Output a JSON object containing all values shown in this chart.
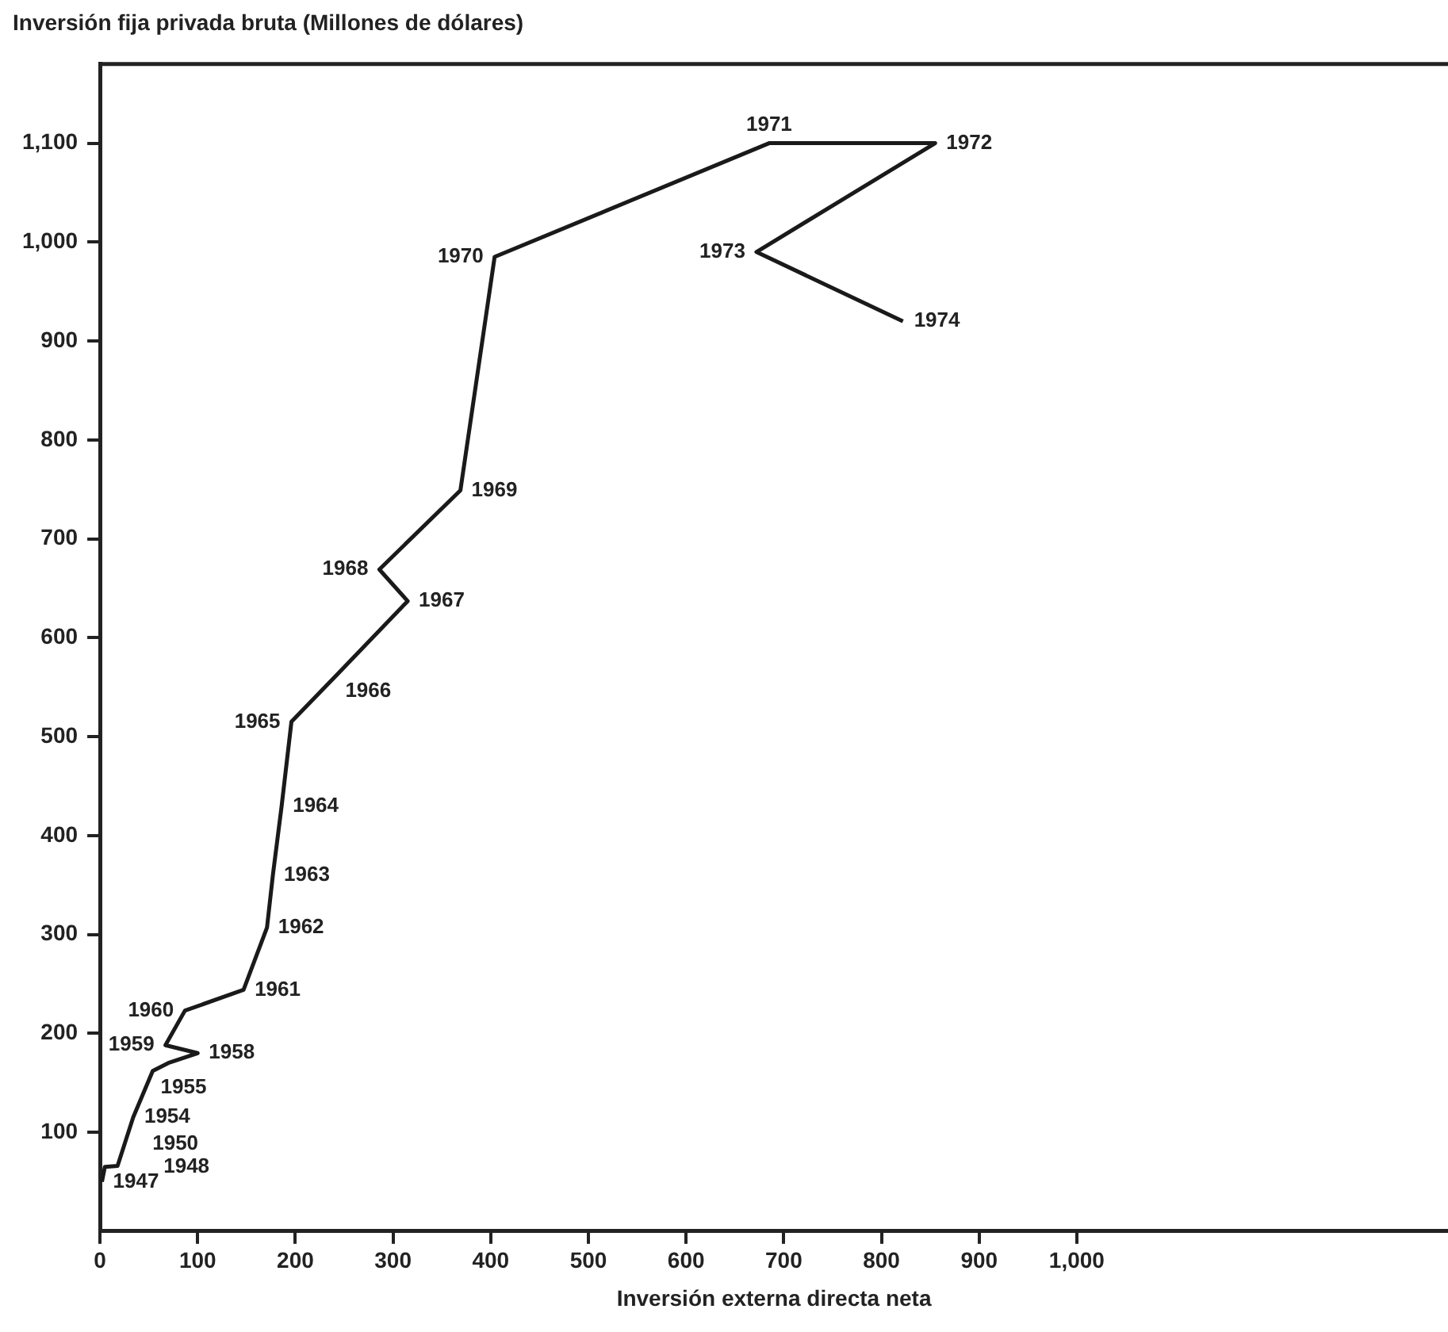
{
  "chart_data": {
    "type": "line",
    "xlabel": "Inversión externa directa neta",
    "ylabel": "Inversión fija privada bruta (Millones de dólares)",
    "x": [
      2,
      5,
      18,
      34,
      54,
      70,
      100,
      67,
      87,
      147,
      171,
      177,
      186,
      196,
      243,
      315,
      286,
      369,
      404,
      685,
      855,
      672,
      822
    ],
    "series": [
      {
        "color": "#1a1a1a",
        "values": [
          50,
          65,
          66,
          115,
          162,
          170,
          180,
          188,
          223,
          244,
          307,
          360,
          430,
          515,
          563,
          637,
          669,
          749,
          985,
          1100,
          1100,
          990,
          920
        ]
      }
    ],
    "xlim": [
      0,
      1380
    ],
    "ylim": [
      0,
      1180
    ],
    "xticks": [
      0,
      100,
      200,
      300,
      400,
      500,
      600,
      700,
      800,
      900,
      {
        "value": 1000,
        "label": "1,000"
      }
    ],
    "yticks": [
      100,
      200,
      300,
      400,
      500,
      600,
      700,
      800,
      900,
      {
        "value": 1000,
        "label": "1,000"
      },
      {
        "value": 1100,
        "label": "1,100"
      }
    ],
    "grid": false,
    "legend": false,
    "marker": "none",
    "line_style": "solid",
    "annotations": [
      {
        "text": "1947",
        "x": 2,
        "y": 50
      },
      {
        "text": "1948",
        "x": 5,
        "y": 65
      },
      {
        "text": "1950",
        "x": 18,
        "y": 66
      },
      {
        "text": "1954",
        "x": 34,
        "y": 115
      },
      {
        "text": "1955",
        "x": 54,
        "y": 162
      },
      {
        "text": "1958",
        "x": 100,
        "y": 180
      },
      {
        "text": "1959",
        "x": 67,
        "y": 188
      },
      {
        "text": "1960",
        "x": 87,
        "y": 223
      },
      {
        "text": "1961",
        "x": 147,
        "y": 244
      },
      {
        "text": "1962",
        "x": 171,
        "y": 307
      },
      {
        "text": "1963",
        "x": 177,
        "y": 360
      },
      {
        "text": "1964",
        "x": 186,
        "y": 430
      },
      {
        "text": "1965",
        "x": 196,
        "y": 515
      },
      {
        "text": "1966",
        "x": 243,
        "y": 563
      },
      {
        "text": "1967",
        "x": 315,
        "y": 637
      },
      {
        "text": "1968",
        "x": 286,
        "y": 669
      },
      {
        "text": "1969",
        "x": 369,
        "y": 749
      },
      {
        "text": "1970",
        "x": 404,
        "y": 985
      },
      {
        "text": "1971",
        "x": 685,
        "y": 1100
      },
      {
        "text": "1972",
        "x": 855,
        "y": 1100
      },
      {
        "text": "1973",
        "x": 672,
        "y": 990
      },
      {
        "text": "1974",
        "x": 822,
        "y": 920
      }
    ]
  }
}
